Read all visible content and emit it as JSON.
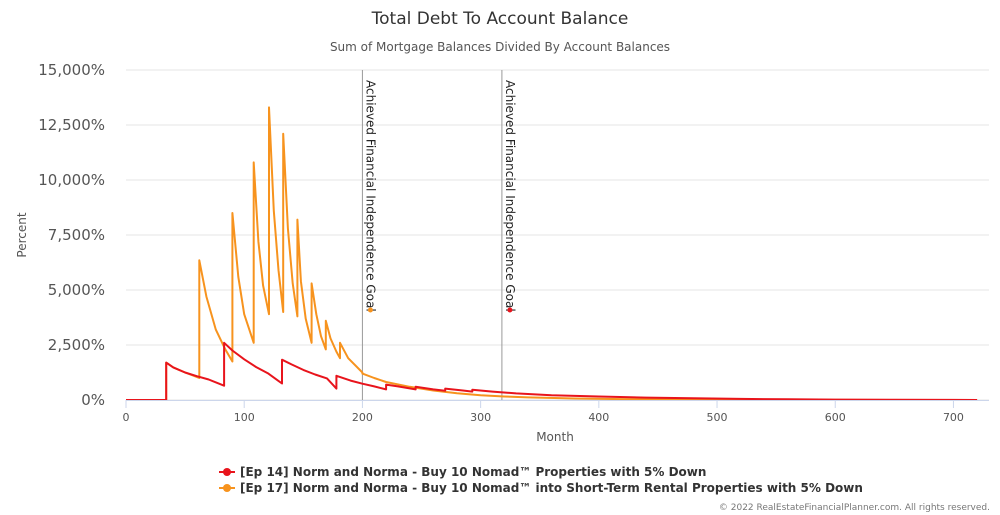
{
  "chart_data": {
    "type": "line",
    "title": "Total Debt To Account Balance",
    "subtitle": "Sum of Mortgage Balances Divided By Account Balances",
    "xlabel": "Month",
    "ylabel": "Percent",
    "xlim": [
      0,
      725
    ],
    "ylim": [
      0,
      15000
    ],
    "x_ticks": [
      "0",
      "100",
      "200",
      "300",
      "400",
      "500",
      "600",
      "700"
    ],
    "x_tick_values": [
      0,
      100,
      200,
      300,
      400,
      500,
      600,
      700
    ],
    "y_ticks": [
      "0%",
      "2,500%",
      "5,000%",
      "7,500%",
      "10,000%",
      "12,500%",
      "15,000%"
    ],
    "y_tick_values": [
      0,
      2500,
      5000,
      7500,
      10000,
      12500,
      15000
    ],
    "grid": true,
    "legend_position": "bottom-center",
    "annotations": [
      {
        "x": 200,
        "text": "Achieved Financial Independence Goal",
        "color": "#f7931e"
      },
      {
        "x": 318,
        "text": "Achieved Financial Independence Goal",
        "color": "#e8141c"
      }
    ],
    "series": [
      {
        "name": "[Ep 14] Norm and Norma - Buy 10 Nomad™ Properties with 5% Down",
        "color": "#e8141c",
        "x": [
          0,
          34,
          34,
          40,
          50,
          60,
          70,
          83,
          83,
          90,
          100,
          110,
          120,
          132,
          132,
          140,
          150,
          160,
          170,
          178,
          178,
          190,
          200,
          210,
          220,
          220,
          230,
          245,
          245,
          260,
          270,
          270,
          285,
          293,
          293,
          310,
          330,
          360,
          400,
          440,
          480,
          520,
          560,
          600,
          650,
          700,
          720
        ],
        "y": [
          0,
          0,
          1700,
          1480,
          1250,
          1080,
          930,
          650,
          2600,
          2250,
          1850,
          1500,
          1220,
          750,
          1830,
          1620,
          1370,
          1160,
          980,
          520,
          1100,
          880,
          740,
          620,
          480,
          700,
          620,
          480,
          600,
          480,
          420,
          520,
          430,
          380,
          470,
          380,
          300,
          220,
          160,
          110,
          80,
          50,
          30,
          20,
          10,
          5,
          0
        ]
      },
      {
        "name": "[Ep 17] Norm and Norma - Buy 10 Nomad™ into Short-Term Rental Properties with 5% Down",
        "color": "#f7931e",
        "x": [
          0,
          34,
          34,
          40,
          50,
          62,
          62,
          68,
          76,
          84,
          90,
          90,
          95,
          100,
          108,
          108,
          112,
          116,
          121,
          121,
          125,
          129,
          133,
          133,
          137,
          141,
          145,
          145,
          148,
          152,
          157,
          157,
          161,
          165,
          169,
          169,
          173,
          178,
          181,
          181,
          188,
          200,
          200,
          210,
          220,
          240,
          260,
          280,
          300,
          320,
          340,
          380,
          420,
          460,
          500,
          550,
          600,
          650,
          720
        ],
        "y": [
          0,
          0,
          1700,
          1480,
          1250,
          1000,
          6350,
          4700,
          3200,
          2300,
          1750,
          8500,
          5600,
          3900,
          2600,
          10800,
          7200,
          5200,
          3900,
          13300,
          8600,
          5900,
          4000,
          12100,
          7800,
          5300,
          3800,
          8200,
          5400,
          3700,
          2600,
          5300,
          3900,
          2900,
          2300,
          3600,
          2800,
          2200,
          1900,
          2600,
          1900,
          1250,
          1200,
          1000,
          820,
          600,
          430,
          310,
          220,
          160,
          120,
          70,
          40,
          25,
          15,
          8,
          5,
          2,
          0
        ]
      }
    ]
  },
  "legend": [
    {
      "label": "[Ep 14] Norm and Norma - Buy 10 Nomad™ Properties with 5% Down",
      "color": "#e8141c"
    },
    {
      "label": "[Ep 17] Norm and Norma - Buy 10 Nomad™ into Short-Term Rental Properties with 5% Down",
      "color": "#f7931e"
    }
  ],
  "credit": "© 2022 RealEstateFinancialPlanner.com. All rights reserved."
}
